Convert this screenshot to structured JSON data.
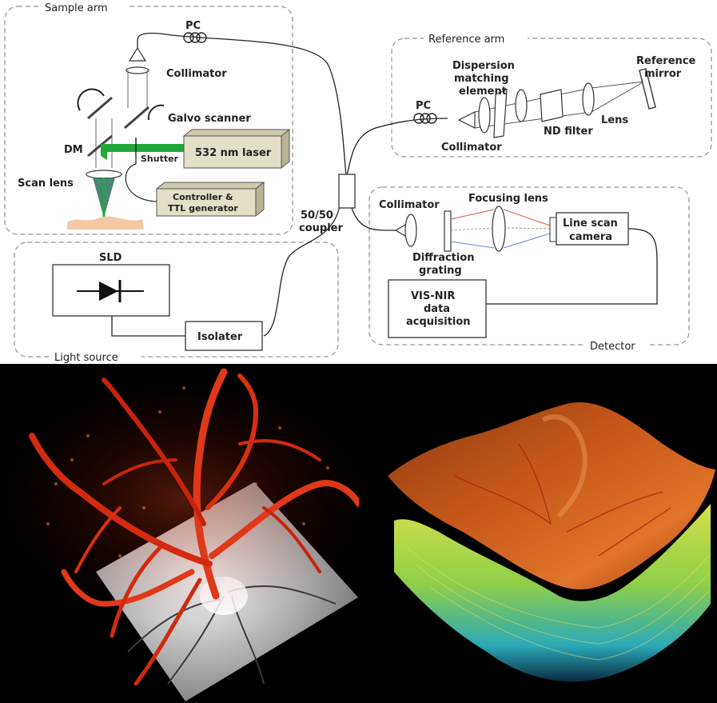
{
  "schematic": {
    "regions": {
      "sample_arm": "Sample arm",
      "reference_arm": "Reference arm",
      "light_source": "Light source",
      "detector": "Detector"
    },
    "sample_arm": {
      "pc": "PC",
      "collimator": "Collimator",
      "galvo": "Galvo scanner",
      "dm": "DM",
      "shutter": "Shutter",
      "laser": "532 nm laser",
      "scan_lens": "Scan lens",
      "controller_line1": "Controller &",
      "controller_line2": "TTL generator"
    },
    "coupler": {
      "line1": "50/50",
      "line2": "coupler"
    },
    "reference_arm": {
      "pc": "PC",
      "dispersion_line1": "Dispersion",
      "dispersion_line2": "matching",
      "dispersion_line3": "element",
      "collimator": "Collimator",
      "nd_filter": "ND filter",
      "lens": "Lens",
      "mirror_line1": "Reference",
      "mirror_line2": "mirror"
    },
    "light_source": {
      "sld": "SLD",
      "isolater": "Isolater"
    },
    "detector": {
      "collimator": "Collimator",
      "focusing_lens": "Focusing lens",
      "grating_line1": "Diffraction",
      "grating_line2": "grating",
      "camera_line1": "Line scan",
      "camera_line2": "camera",
      "daq_line1": "VIS-NIR",
      "daq_line2": "data",
      "daq_line3": "acquisition"
    },
    "colors": {
      "laser_beam": "#22a83a",
      "laser_box": "#e4dfc8",
      "tissue": "#f3c9a8",
      "red_ray": "#e05050",
      "blue_ray": "#6a8ad0"
    }
  },
  "renders": {
    "left": {
      "description_colors": [
        "#d42a10",
        "#ff5a30",
        "#cfcfcf"
      ]
    },
    "right": {
      "description_colors": [
        "#c4561a",
        "#e8c34a",
        "#b6d64a",
        "#2aa8b8"
      ]
    }
  }
}
